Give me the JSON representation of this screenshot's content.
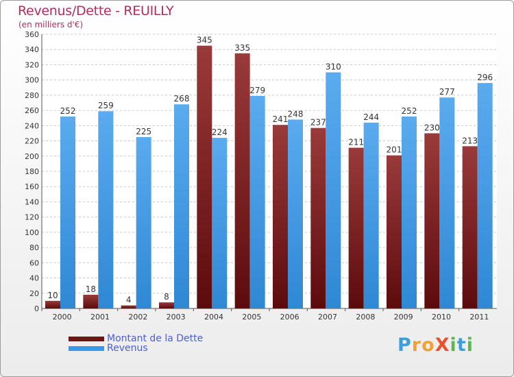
{
  "title": "Revenus/Dette - REUILLY",
  "subtitle": "(en milliers d'€)",
  "logo": {
    "text": "ProXiti",
    "letters": [
      {
        "ch": "P",
        "color": "#3aa0dc"
      },
      {
        "ch": "r",
        "color": "#f2a233"
      },
      {
        "ch": "o",
        "color": "#f2a233"
      },
      {
        "ch": "X",
        "color": "#e8532e"
      },
      {
        "ch": "i",
        "color": "#5bb84a"
      },
      {
        "ch": "t",
        "color": "#3aa0dc"
      },
      {
        "ch": "i",
        "color": "#5bb84a"
      }
    ]
  },
  "legend": [
    {
      "label": "Montant de la Dette",
      "color": "#6e1416"
    },
    {
      "label": "Revenus",
      "color": "#3d97e2"
    }
  ],
  "chart_data": {
    "type": "bar",
    "categories": [
      "2000",
      "2001",
      "2002",
      "2003",
      "2004",
      "2005",
      "2006",
      "2007",
      "2008",
      "2009",
      "2010",
      "2011"
    ],
    "series": [
      {
        "name": "Montant de la Dette",
        "color": "#7a1a1e",
        "values": [
          10,
          18,
          4,
          8,
          345,
          335,
          241,
          237,
          211,
          201,
          230,
          213
        ]
      },
      {
        "name": "Revenus",
        "color": "#3d97e2",
        "values": [
          252,
          259,
          225,
          268,
          224,
          279,
          248,
          310,
          244,
          252,
          277,
          296
        ]
      }
    ],
    "ylim": [
      0,
      360
    ],
    "yticks": [
      0,
      20,
      40,
      60,
      80,
      100,
      120,
      140,
      160,
      180,
      200,
      220,
      240,
      260,
      280,
      300,
      320,
      340,
      360
    ],
    "grid": true,
    "legend_position": "bottom-left"
  }
}
